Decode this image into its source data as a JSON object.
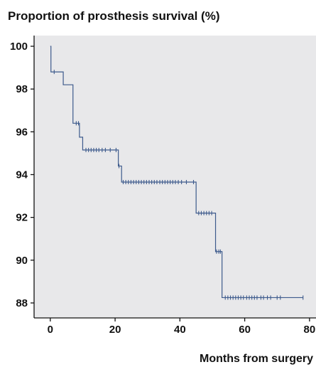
{
  "chart_data": {
    "type": "line",
    "title": "Proportion of prosthesis survival (%)",
    "xlabel": "Months from surgery",
    "ylabel": "",
    "xlim": [
      -5,
      82
    ],
    "ylim": [
      87.3,
      100.5
    ],
    "xticks": [
      0,
      20,
      40,
      60,
      80
    ],
    "yticks": [
      88,
      90,
      92,
      94,
      96,
      98,
      100
    ],
    "grid": false,
    "colors": {
      "line": "#3d5a8c",
      "plot_background": "#e8e8ea",
      "axis": "#111111"
    },
    "series": [
      {
        "steps": [
          [
            0,
            100
          ],
          [
            0.2,
            98.8
          ],
          [
            4,
            98.2
          ],
          [
            7,
            96.4
          ],
          [
            9,
            95.75
          ],
          [
            10,
            95.15
          ],
          [
            21,
            94.4
          ],
          [
            22,
            93.65
          ],
          [
            45,
            92.2
          ],
          [
            51,
            90.4
          ],
          [
            53,
            88.25
          ],
          [
            78,
            88.25
          ]
        ],
        "censored": [
          [
            1.2,
            98.8
          ],
          [
            8,
            96.4
          ],
          [
            8.7,
            96.4
          ],
          [
            11,
            95.15
          ],
          [
            11.8,
            95.15
          ],
          [
            12.6,
            95.15
          ],
          [
            13.4,
            95.15
          ],
          [
            14.2,
            95.15
          ],
          [
            15,
            95.15
          ],
          [
            16,
            95.15
          ],
          [
            17,
            95.15
          ],
          [
            18.5,
            95.15
          ],
          [
            20.3,
            95.15
          ],
          [
            21.2,
            94.4
          ],
          [
            22.5,
            93.65
          ],
          [
            23.3,
            93.65
          ],
          [
            24.1,
            93.65
          ],
          [
            24.9,
            93.65
          ],
          [
            25.7,
            93.65
          ],
          [
            26.5,
            93.65
          ],
          [
            27.3,
            93.65
          ],
          [
            28.1,
            93.65
          ],
          [
            28.9,
            93.65
          ],
          [
            29.7,
            93.65
          ],
          [
            30.5,
            93.65
          ],
          [
            31.3,
            93.65
          ],
          [
            32.1,
            93.65
          ],
          [
            32.9,
            93.65
          ],
          [
            33.8,
            93.65
          ],
          [
            34.6,
            93.65
          ],
          [
            35.4,
            93.65
          ],
          [
            36.2,
            93.65
          ],
          [
            37,
            93.65
          ],
          [
            37.8,
            93.65
          ],
          [
            38.6,
            93.65
          ],
          [
            39.5,
            93.65
          ],
          [
            40.5,
            93.65
          ],
          [
            42,
            93.65
          ],
          [
            44.2,
            93.65
          ],
          [
            45.8,
            92.2
          ],
          [
            46.6,
            92.2
          ],
          [
            47.4,
            92.2
          ],
          [
            48.2,
            92.2
          ],
          [
            49,
            92.2
          ],
          [
            49.8,
            92.2
          ],
          [
            51.3,
            90.4
          ],
          [
            52,
            90.4
          ],
          [
            52.5,
            90.4
          ],
          [
            54,
            88.25
          ],
          [
            54.8,
            88.25
          ],
          [
            55.6,
            88.25
          ],
          [
            56.4,
            88.25
          ],
          [
            57.2,
            88.25
          ],
          [
            58,
            88.25
          ],
          [
            58.8,
            88.25
          ],
          [
            59.6,
            88.25
          ],
          [
            60.6,
            88.25
          ],
          [
            61.4,
            88.25
          ],
          [
            62.2,
            88.25
          ],
          [
            63,
            88.25
          ],
          [
            63.8,
            88.25
          ],
          [
            65,
            88.25
          ],
          [
            65.8,
            88.25
          ],
          [
            67,
            88.25
          ],
          [
            68,
            88.25
          ],
          [
            70,
            88.25
          ],
          [
            71,
            88.25
          ],
          [
            78,
            88.25
          ]
        ]
      }
    ]
  }
}
